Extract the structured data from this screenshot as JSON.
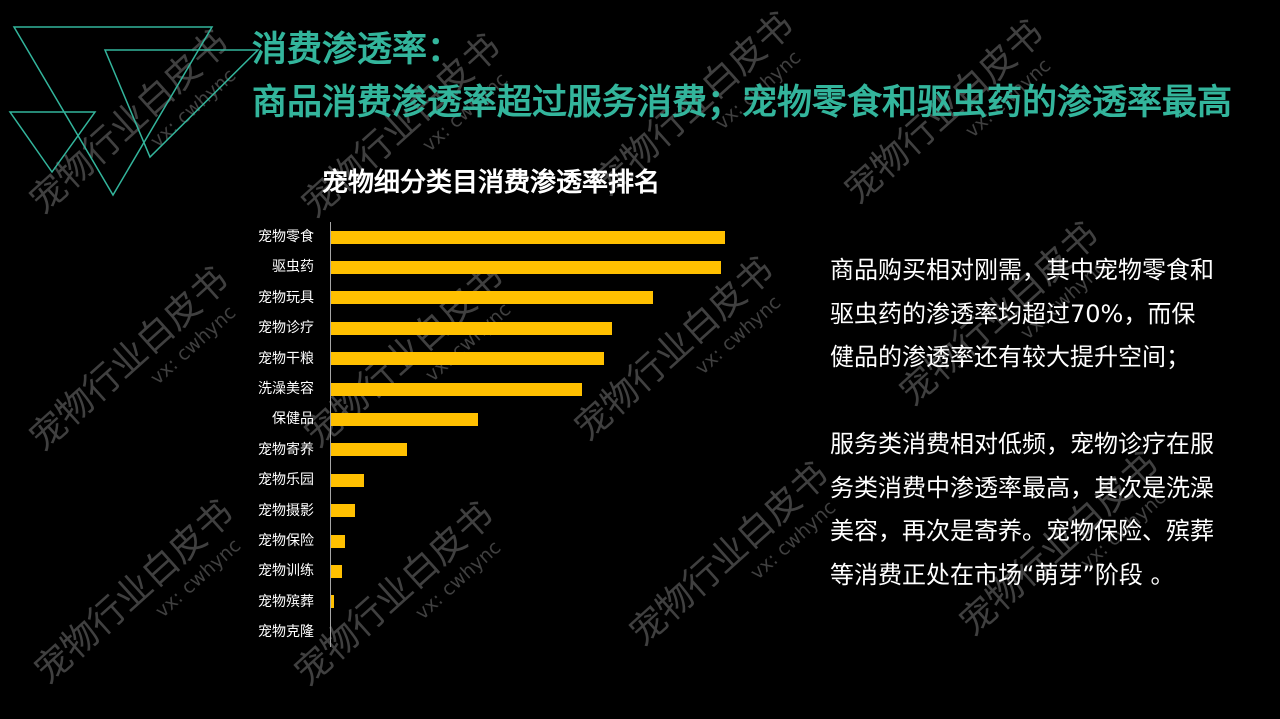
{
  "colors": {
    "background": "#000000",
    "title": "#33b59c",
    "text": "#ffffff",
    "bar": "#ffc000",
    "axis": "#a6a6a6",
    "decoration": "#33b59c",
    "watermark": "#404040"
  },
  "icons": {
    "corner_decoration": "outline-triangles-icon"
  },
  "title": {
    "line1": "消费渗透率：",
    "line2": "商品消费渗透率超过服务消费；宠物零食和驱虫药的渗透率最高"
  },
  "chart_data": {
    "type": "bar",
    "orientation": "horizontal",
    "title": "宠物细分类目消费渗透率排名",
    "xlabel": "",
    "ylabel": "",
    "categories": [
      "宠物零食",
      "驱虫药",
      "宠物玩具",
      "宠物诊疗",
      "宠物干粮",
      "洗澡美容",
      "保健品",
      "宠物寄养",
      "宠物乐园",
      "宠物摄影",
      "宠物保险",
      "宠物训练",
      "宠物殡葬",
      "宠物克隆"
    ],
    "values": [
      72,
      71.3,
      58.8,
      51.3,
      49.9,
      45.9,
      26.9,
      13.9,
      6.0,
      4.4,
      2.6,
      2.0,
      0.5,
      0
    ],
    "bar_color": "#ffc000",
    "grid": false
  },
  "commentary": {
    "paragraphs": [
      {
        "lines": [
          "商品购买相对刚需，其中宠物零食和",
          "驱虫药的渗透率均超过70%，而保",
          "健品的渗透率还有较大提升空间；"
        ]
      },
      {
        "lines": [
          "服务类消费相对低频，宠物诊疗在服",
          "务类消费中渗透率最高，其次是洗澡",
          "美容，再次是寄养。宠物保险、殡葬",
          "等消费正处在市场“萌芽”阶段 。"
        ]
      }
    ]
  },
  "watermark": {
    "text": "宠物行业白皮书",
    "contact": "vx: cwhync"
  }
}
